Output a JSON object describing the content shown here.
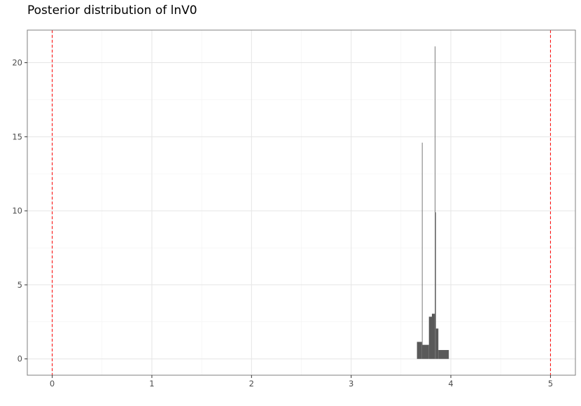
{
  "chart_data": {
    "type": "bar",
    "title": "Posterior distribution of lnV0",
    "xlabel": "",
    "ylabel": "",
    "xlim": [
      -0.25,
      5.25
    ],
    "ylim": [
      -1.1,
      22.2
    ],
    "x_ticks": [
      0,
      1,
      2,
      3,
      4,
      5
    ],
    "y_ticks": [
      0,
      5,
      10,
      15,
      20
    ],
    "grid": true,
    "theme": "bw",
    "bar_color": "#595959",
    "reference_line_color": "#ff0000",
    "reference_lines": [
      0,
      5
    ],
    "histogram_bins": [
      {
        "x0": 3.66,
        "x1": 3.71,
        "y": 1.15
      },
      {
        "x0": 3.71,
        "x1": 3.715,
        "y": 14.6
      },
      {
        "x0": 3.715,
        "x1": 3.78,
        "y": 0.95
      },
      {
        "x0": 3.78,
        "x1": 3.81,
        "y": 2.85
      },
      {
        "x0": 3.81,
        "x1": 3.84,
        "y": 3.05
      },
      {
        "x0": 3.84,
        "x1": 3.845,
        "y": 21.1
      },
      {
        "x0": 3.845,
        "x1": 3.85,
        "y": 9.9
      },
      {
        "x0": 3.85,
        "x1": 3.875,
        "y": 2.05
      },
      {
        "x0": 3.875,
        "x1": 3.98,
        "y": 0.6
      }
    ]
  }
}
